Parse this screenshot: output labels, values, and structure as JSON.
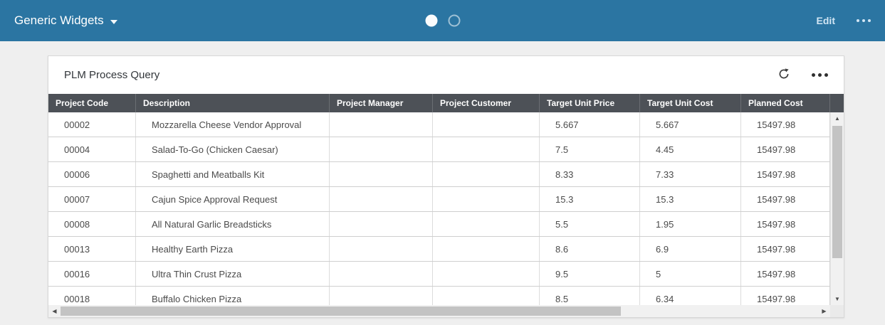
{
  "topbar": {
    "title": "Generic Widgets",
    "edit_label": "Edit",
    "pagination": {
      "total_pages": 2,
      "active_page": 1
    }
  },
  "widget": {
    "title": "PLM Process Query",
    "icons": [
      "refresh-icon",
      "overflow-menu-icon"
    ]
  },
  "table": {
    "columns": [
      "Project Code",
      "Description",
      "Project Manager",
      "Project Customer",
      "Target Unit Price",
      "Target Unit Cost",
      "Planned Cost"
    ],
    "rows": [
      [
        "00002",
        "Mozzarella Cheese Vendor Approval",
        "",
        "",
        "5.667",
        "5.667",
        "15497.98"
      ],
      [
        "00004",
        "Salad-To-Go (Chicken Caesar)",
        "",
        "",
        "7.5",
        "4.45",
        "15497.98"
      ],
      [
        "00006",
        "Spaghetti and Meatballs Kit",
        "",
        "",
        "8.33",
        "7.33",
        "15497.98"
      ],
      [
        "00007",
        "Cajun Spice Approval Request",
        "",
        "",
        "15.3",
        "15.3",
        "15497.98"
      ],
      [
        "00008",
        "All Natural Garlic Breadsticks",
        "",
        "",
        "5.5",
        "1.95",
        "15497.98"
      ],
      [
        "00013",
        "Healthy Earth Pizza",
        "",
        "",
        "8.6",
        "6.9",
        "15497.98"
      ],
      [
        "00016",
        "Ultra Thin Crust Pizza",
        "",
        "",
        "9.5",
        "5",
        "15497.98"
      ],
      [
        "00018",
        "Buffalo Chicken Pizza",
        "",
        "",
        "8.5",
        "6.34",
        "15497.98"
      ]
    ]
  },
  "colors": {
    "topbar_blue": "#2b75a2",
    "header_gray": "#4d5157",
    "page_bg": "#efefef",
    "accent_text": "#d2e6f4"
  }
}
